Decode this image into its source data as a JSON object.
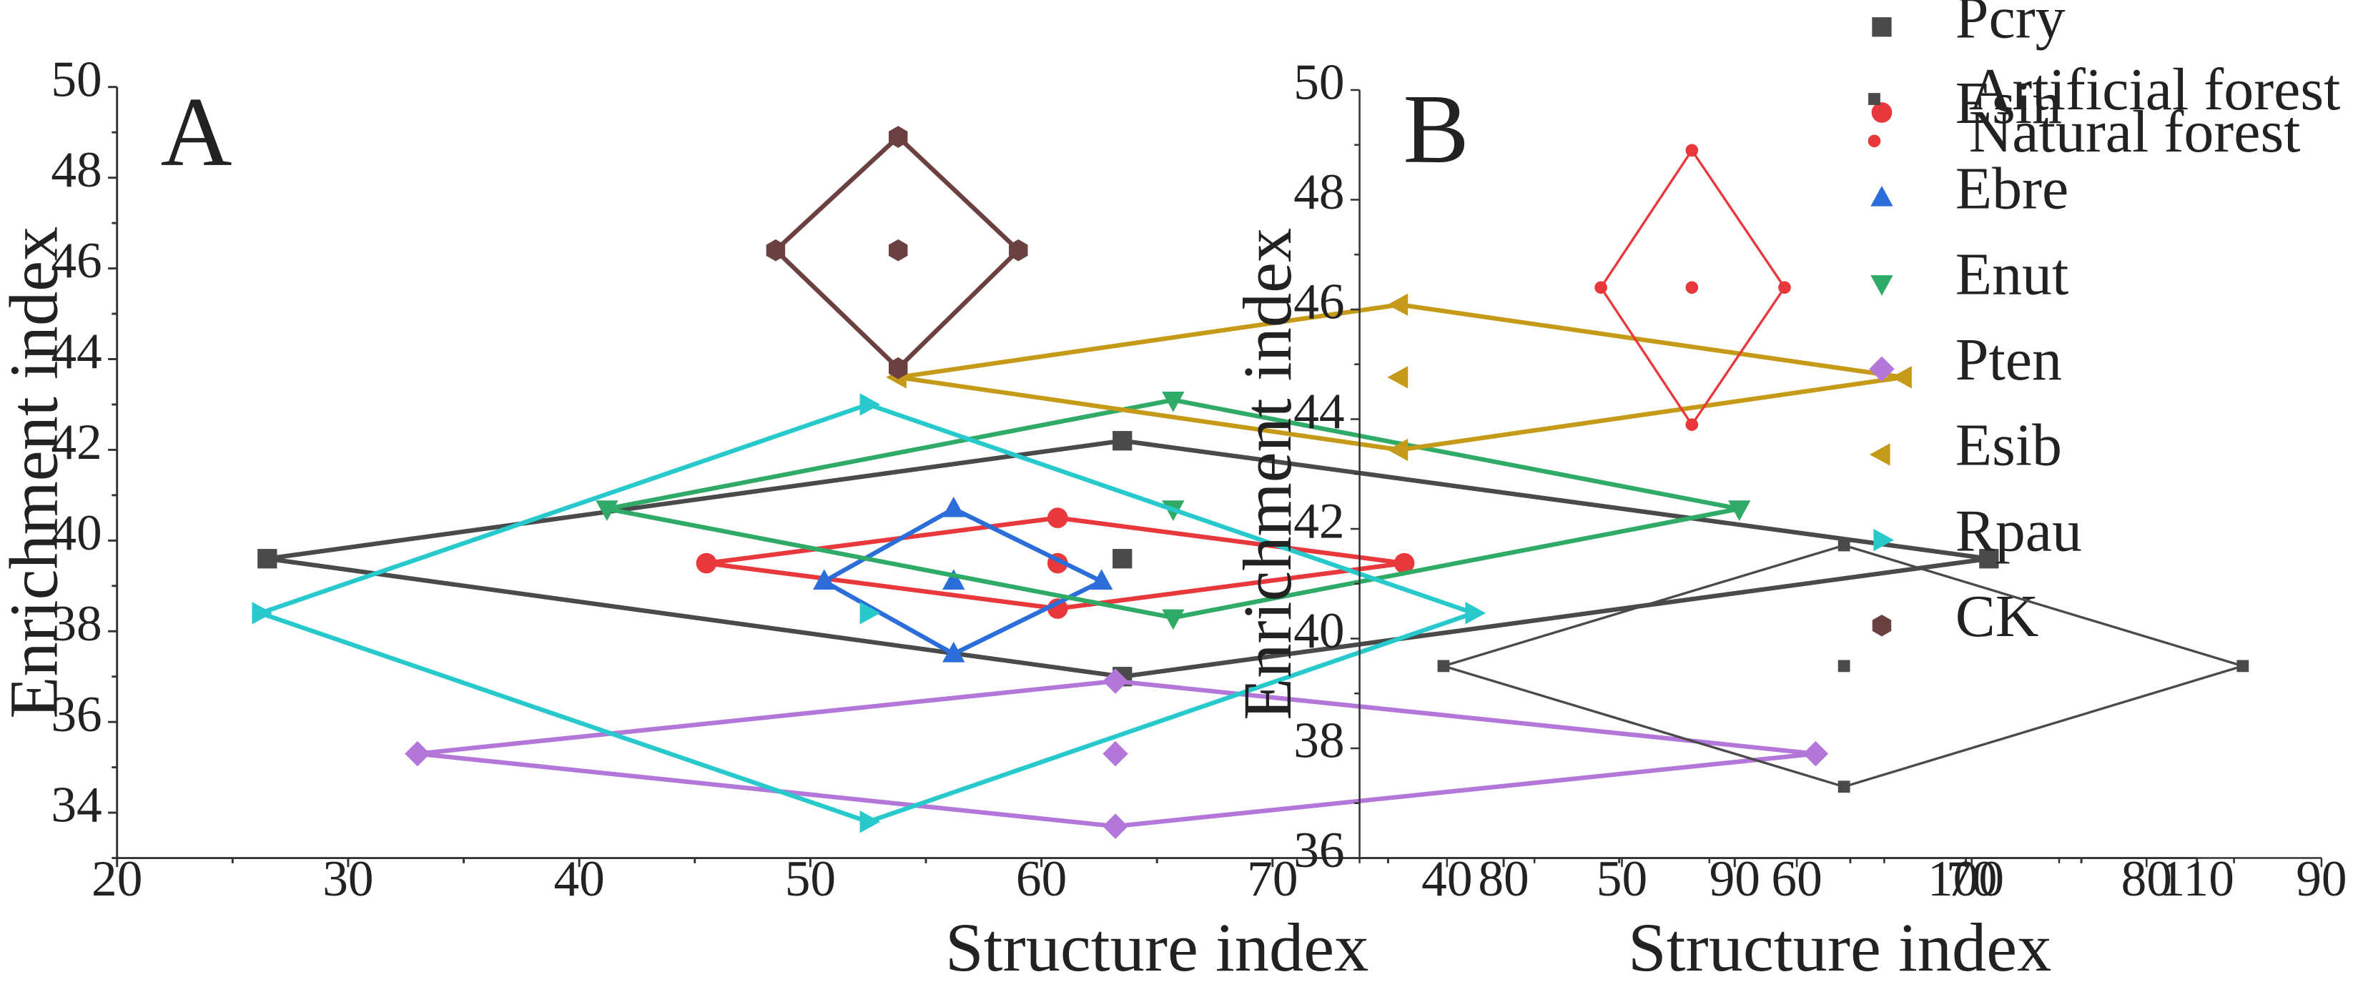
{
  "chart_data": [
    {
      "type": "scatter",
      "panel_label": "A",
      "xlabel": "Structure index",
      "ylabel": "Enrichment index",
      "xlim": [
        20,
        110
      ],
      "ylim": [
        33,
        50
      ],
      "xticks": [
        20,
        30,
        40,
        50,
        60,
        70,
        80,
        90,
        100,
        110
      ],
      "yticks": [
        34,
        36,
        38,
        40,
        42,
        44,
        46,
        48,
        50
      ],
      "legend_position": "top-right",
      "series": [
        {
          "name": "Pcry",
          "color": "#4a4a4a",
          "marker": "square",
          "center": [
            63.5,
            39.6
          ],
          "diamond": [
            [
              26.5,
              39.6
            ],
            [
              63.5,
              42.2
            ],
            [
              101,
              39.6
            ],
            [
              63.5,
              37.0
            ]
          ]
        },
        {
          "name": "Esin",
          "color": "#e8383c",
          "marker": "circle",
          "center": [
            60.7,
            39.5
          ],
          "diamond": [
            [
              45.5,
              39.5
            ],
            [
              60.7,
              40.5
            ],
            [
              75.7,
              39.5
            ],
            [
              60.7,
              38.5
            ]
          ]
        },
        {
          "name": "Ebre",
          "color": "#2b6ed9",
          "marker": "triangle-up",
          "center": [
            56.2,
            39.1
          ],
          "diamond": [
            [
              50.6,
              39.1
            ],
            [
              56.2,
              40.7
            ],
            [
              62.6,
              39.1
            ],
            [
              56.2,
              37.5
            ]
          ]
        },
        {
          "name": "Enut",
          "color": "#2faa67",
          "marker": "triangle-down",
          "center": [
            65.7,
            40.7
          ],
          "diamond": [
            [
              41.2,
              40.7
            ],
            [
              65.7,
              43.1
            ],
            [
              90.2,
              40.7
            ],
            [
              65.7,
              38.3
            ]
          ]
        },
        {
          "name": "Pten",
          "color": "#b277d9",
          "marker": "diamond",
          "center": [
            63.2,
            35.3
          ],
          "diamond": [
            [
              33.0,
              35.3
            ],
            [
              63.2,
              36.9
            ],
            [
              93.5,
              35.3
            ],
            [
              63.2,
              33.7
            ]
          ]
        },
        {
          "name": "Esib",
          "color": "#c49a18",
          "marker": "triangle-left",
          "center": [
            75.5,
            43.6
          ],
          "diamond": [
            [
              53.8,
              43.6
            ],
            [
              75.5,
              45.2
            ],
            [
              97.3,
              43.6
            ],
            [
              75.5,
              42.0
            ]
          ]
        },
        {
          "name": "Rpau",
          "color": "#27c9cc",
          "marker": "triangle-right",
          "center": [
            52.5,
            38.4
          ],
          "diamond": [
            [
              26.2,
              38.4
            ],
            [
              52.5,
              43.0
            ],
            [
              78.7,
              38.4
            ],
            [
              52.5,
              33.8
            ]
          ]
        },
        {
          "name": "CK",
          "color": "#6b4040",
          "marker": "hexagon",
          "center": [
            53.8,
            46.4
          ],
          "diamond": [
            [
              48.5,
              46.4
            ],
            [
              53.8,
              48.9
            ],
            [
              59.0,
              46.4
            ],
            [
              53.8,
              43.8
            ]
          ]
        }
      ]
    },
    {
      "type": "scatter",
      "panel_label": "B",
      "xlabel": "Structure index",
      "ylabel": "Enrichment index",
      "xlim": [
        35,
        90
      ],
      "ylim": [
        36,
        50
      ],
      "xticks": [
        40,
        50,
        60,
        70,
        80,
        90
      ],
      "yticks": [
        36,
        38,
        40,
        42,
        44,
        46,
        48,
        50
      ],
      "legend_position": "top-right",
      "series": [
        {
          "name": "Artificial forest",
          "color": "#4a4a4a",
          "marker": "square",
          "center": [
            62.7,
            39.5
          ],
          "diamond": [
            [
              39.8,
              39.5
            ],
            [
              62.7,
              41.7
            ],
            [
              85.5,
              39.5
            ],
            [
              62.7,
              37.3
            ]
          ]
        },
        {
          "name": "Natural forest",
          "color": "#e8383c",
          "marker": "circle",
          "center": [
            54.0,
            46.4
          ],
          "diamond": [
            [
              48.8,
              46.4
            ],
            [
              54.0,
              48.9
            ],
            [
              59.3,
              46.4
            ],
            [
              54.0,
              43.9
            ]
          ]
        }
      ]
    }
  ]
}
